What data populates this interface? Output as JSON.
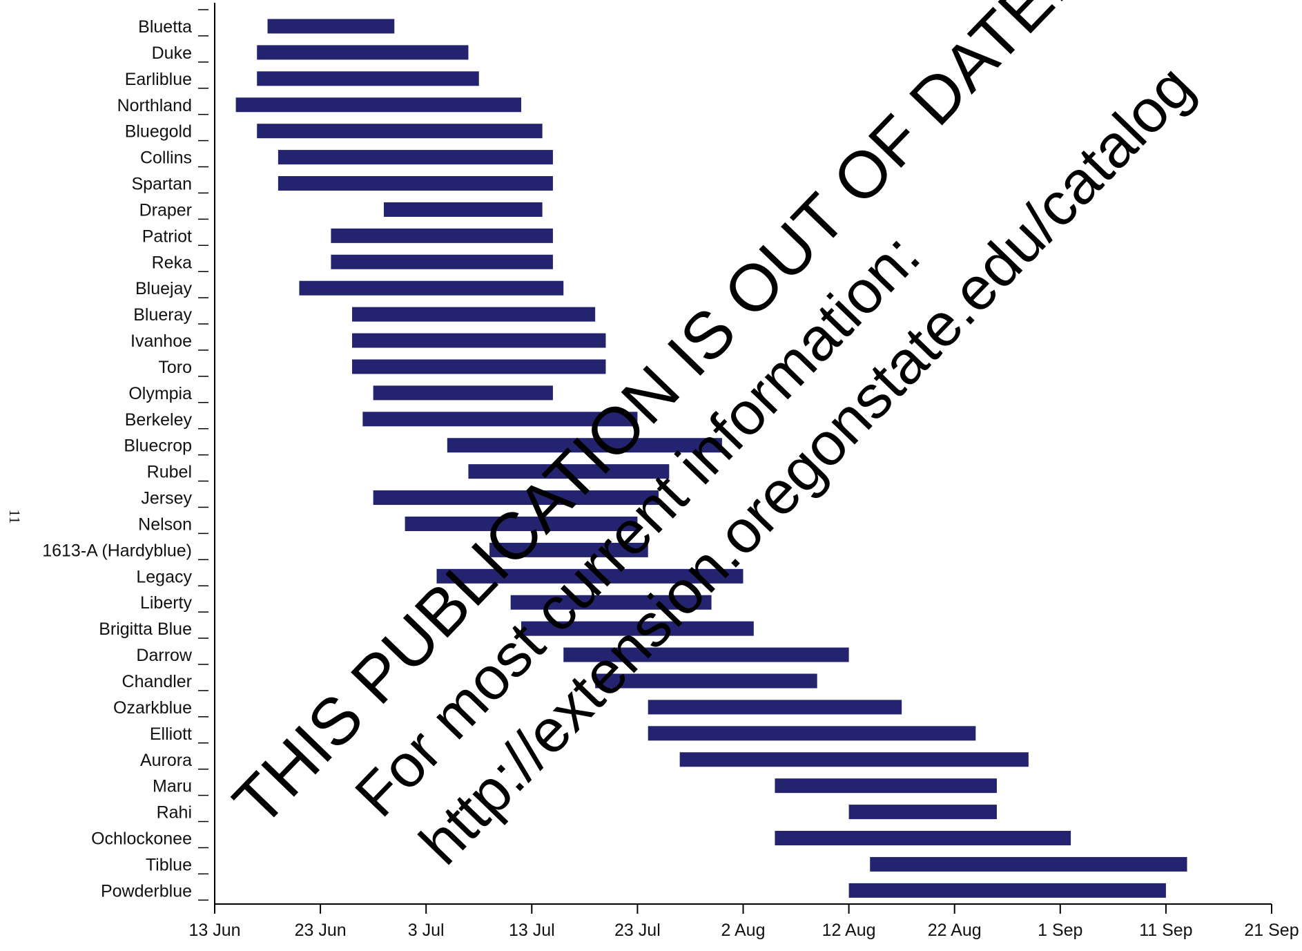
{
  "page_number": "11",
  "colors": {
    "bar": "#23236f",
    "axis": "#000000",
    "text": "#111111"
  },
  "watermark": {
    "line1": "THIS PUBLICATION IS OUT OF DATE.",
    "line2": "For most current information:",
    "line3": "http://extension.oregonstate.edu/catalog"
  },
  "chart_data": {
    "type": "bar",
    "orientation": "horizontal-range",
    "title": "",
    "xlabel": "",
    "ylabel": "",
    "x_unit": "date",
    "x_range": [
      "13 Jun",
      "21 Sep"
    ],
    "x_ticks": [
      "13 Jun",
      "23 Jun",
      "3 Jul",
      "13 Jul",
      "23 Jul",
      "2 Aug",
      "12 Aug",
      "22 Aug",
      "1 Sep",
      "11 Sep",
      "21 Sep"
    ],
    "grid": false,
    "legend": "none",
    "categories": [
      "Bluetta",
      "Duke",
      "Earliblue",
      "Northland",
      "Bluegold",
      "Collins",
      "Spartan",
      "Draper",
      "Patriot",
      "Reka",
      "Bluejay",
      "Blueray",
      "Ivanhoe",
      "Toro",
      "Olympia",
      "Berkeley",
      "Bluecrop",
      "Rubel",
      "Jersey",
      "Nelson",
      "1613-A (Hardyblue)",
      "Legacy",
      "Liberty",
      "Brigitta Blue",
      "Darrow",
      "Chandler",
      "Ozarkblue",
      "Elliott",
      "Aurora",
      "Maru",
      "Rahi",
      "Ochlockonee",
      "Tiblue",
      "Powderblue"
    ],
    "start": [
      "18 Jun",
      "17 Jun",
      "17 Jun",
      "15 Jun",
      "17 Jun",
      "19 Jun",
      "19 Jun",
      "29 Jun",
      "24 Jun",
      "24 Jun",
      "21 Jun",
      "26 Jun",
      "26 Jun",
      "26 Jun",
      "28 Jun",
      "27 Jun",
      "5 Jul",
      "7 Jul",
      "28 Jun",
      "1 Jul",
      "9 Jul",
      "4 Jul",
      "11 Jul",
      "12 Jul",
      "16 Jul",
      "19 Jul",
      "24 Jul",
      "24 Jul",
      "27 Jul",
      "5 Aug",
      "12 Aug",
      "5 Aug",
      "14 Aug",
      "12 Aug"
    ],
    "end": [
      "30 Jun",
      "7 Jul",
      "8 Jul",
      "12 Jul",
      "14 Jul",
      "15 Jul",
      "15 Jul",
      "14 Jul",
      "15 Jul",
      "15 Jul",
      "16 Jul",
      "19 Jul",
      "20 Jul",
      "20 Jul",
      "15 Jul",
      "23 Jul",
      "31 Jul",
      "26 Jul",
      "25 Jul",
      "23 Jul",
      "24 Jul",
      "2 Aug",
      "30 Jul",
      "3 Aug",
      "12 Aug",
      "9 Aug",
      "17 Aug",
      "24 Aug",
      "29 Aug",
      "26 Aug",
      "26 Aug",
      "2 Sep",
      "13 Sep",
      "11 Sep"
    ]
  }
}
